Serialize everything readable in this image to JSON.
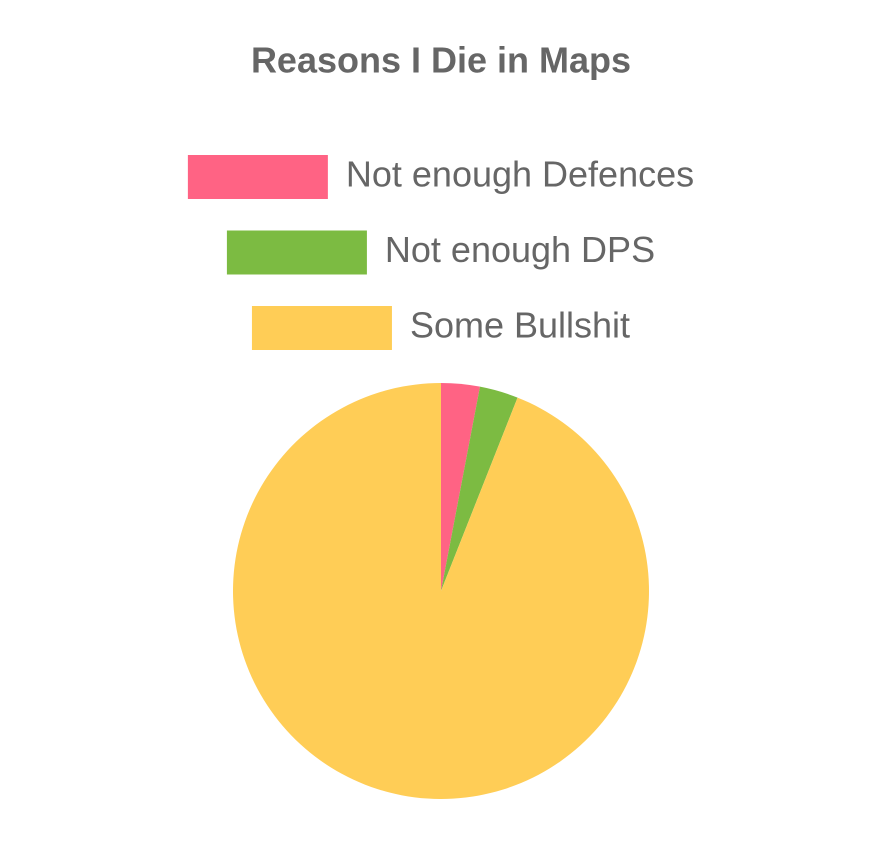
{
  "chart_data": {
    "type": "pie",
    "title": "Reasons I Die in Maps",
    "categories": [
      "Not enough Defences",
      "Not enough DPS",
      "Some Bullshit"
    ],
    "values": [
      3,
      3,
      94
    ],
    "colors": [
      "#ff6384",
      "#7cbb42",
      "#ffcd56"
    ],
    "legend": "top"
  }
}
